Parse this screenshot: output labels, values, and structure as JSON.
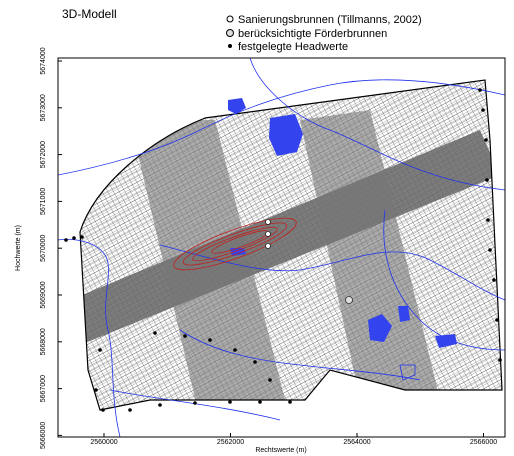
{
  "title": "3D-Modell",
  "legend": [
    {
      "label": "Sanierungsbrunnen (Tillmanns, 2002)"
    },
    {
      "label": "berücksichtigte Förderbrunnen"
    },
    {
      "label": "festgelegte Headwerte"
    }
  ],
  "x_axis": {
    "label": "Rechtswerte (m)",
    "ticks": [
      "2560000",
      "2562000",
      "2564000",
      "2566000"
    ]
  },
  "y_axis": {
    "label": "Hochwerte (m)",
    "ticks": [
      "5674000",
      "5673000",
      "5672000",
      "5671000",
      "5670000",
      "5669000",
      "5668000",
      "5667000",
      "5666000"
    ]
  }
}
